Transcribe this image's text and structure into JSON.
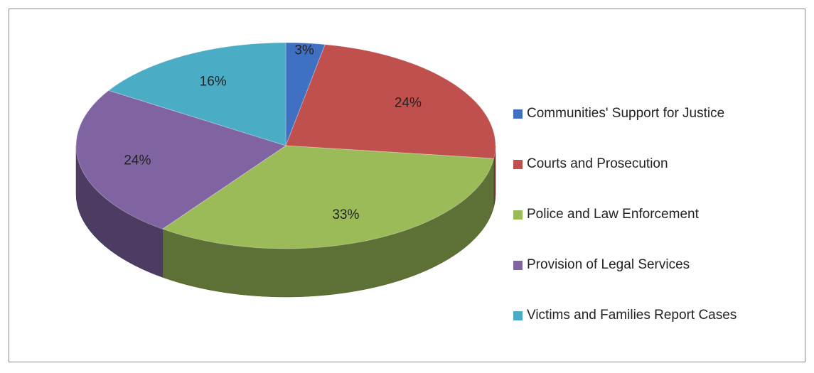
{
  "chart_data": {
    "type": "pie",
    "pie_3d": true,
    "categories": [
      "Communities' Support for Justice",
      "Courts and Prosecution",
      "Police and Law Enforcement",
      "Provision of Legal Services",
      "Victims and Families Report Cases"
    ],
    "values": [
      3,
      24,
      33,
      24,
      16
    ],
    "value_labels": [
      "3%",
      "24%",
      "33%",
      "24%",
      "16%"
    ],
    "colors": [
      "#3f70c1",
      "#c0504d",
      "#9bbb59",
      "#8064a2",
      "#4bacc6"
    ],
    "legend": "right"
  }
}
